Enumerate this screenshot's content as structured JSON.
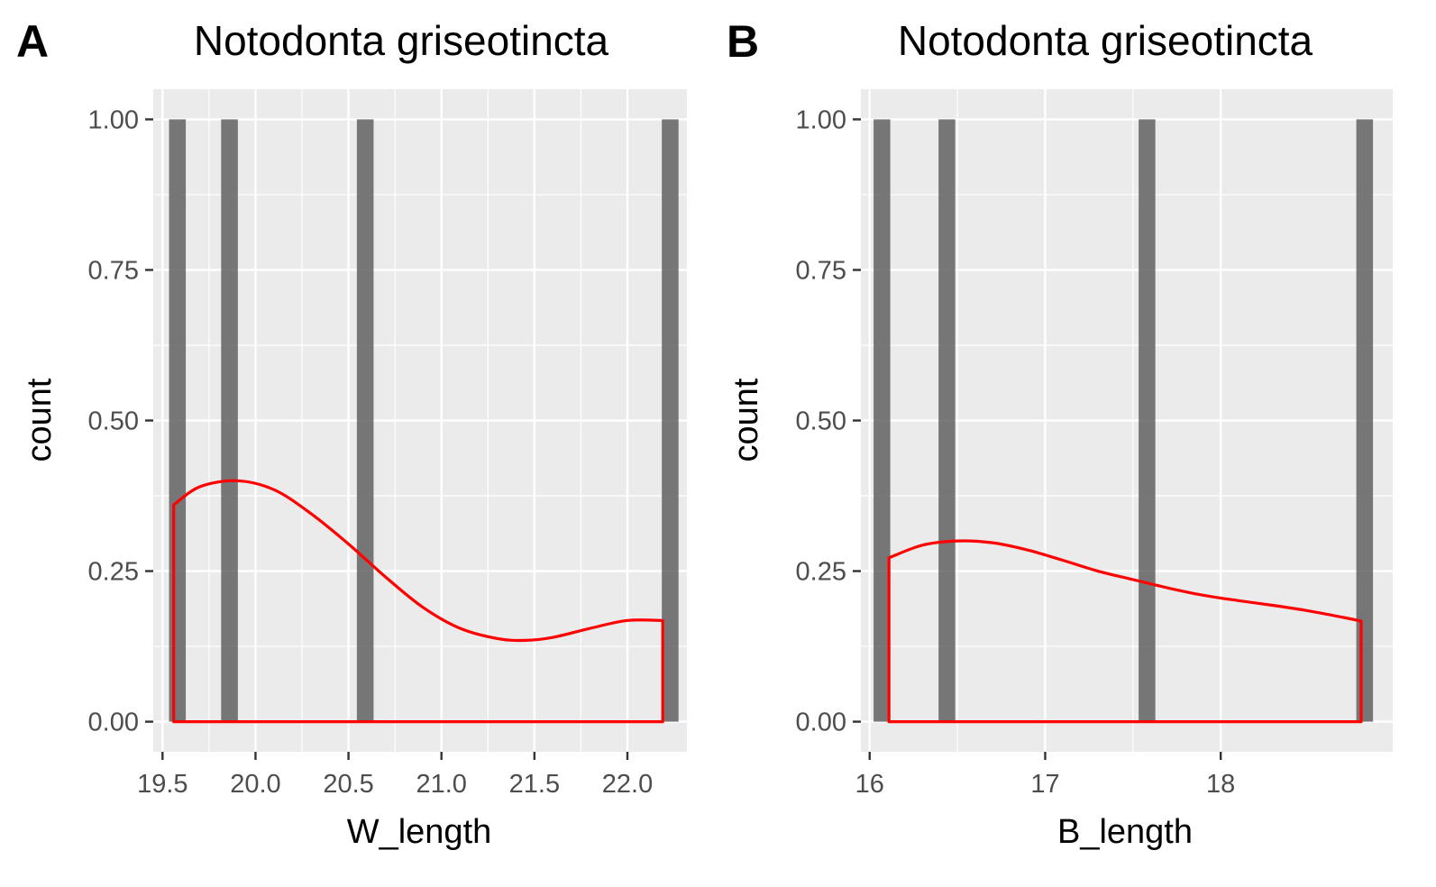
{
  "colors": {
    "panel_background": "#ebebeb",
    "grid": "#ffffff",
    "bar": "#595959",
    "density": "#ff0000",
    "tick": "#333333",
    "tick_label": "#4d4d4d"
  },
  "chart_data": [
    {
      "type": "bar",
      "panel_label": "A",
      "title": "Notodonta griseotincta",
      "xlabel": "W_length",
      "ylabel": "count",
      "xlim": [
        19.45,
        22.32
      ],
      "ylim": [
        -0.05,
        1.05
      ],
      "x_ticks": [
        {
          "value": 19.5,
          "label": "19.5"
        },
        {
          "value": 20.0,
          "label": "20.0"
        },
        {
          "value": 20.5,
          "label": "20.5"
        },
        {
          "value": 21.0,
          "label": "21.0"
        },
        {
          "value": 21.5,
          "label": "21.5"
        },
        {
          "value": 22.0,
          "label": "22.0"
        }
      ],
      "y_ticks": [
        {
          "value": 0.0,
          "label": "0.00"
        },
        {
          "value": 0.25,
          "label": "0.25"
        },
        {
          "value": 0.5,
          "label": "0.50"
        },
        {
          "value": 0.75,
          "label": "0.75"
        },
        {
          "value": 1.0,
          "label": "1.00"
        }
      ],
      "grid": true,
      "bin_width": 0.09,
      "bars": [
        {
          "x": 19.58,
          "count": 1
        },
        {
          "x": 19.86,
          "count": 1
        },
        {
          "x": 20.59,
          "count": 1
        },
        {
          "x": 22.23,
          "count": 1
        }
      ],
      "density": {
        "x": [
          19.56,
          19.7,
          19.9,
          20.1,
          20.3,
          20.5,
          20.7,
          20.9,
          21.1,
          21.3,
          21.45,
          21.6,
          21.8,
          22.0,
          22.19
        ],
        "y": [
          0.36,
          0.39,
          0.4,
          0.385,
          0.345,
          0.295,
          0.24,
          0.19,
          0.155,
          0.138,
          0.135,
          0.14,
          0.155,
          0.168,
          0.168
        ]
      }
    },
    {
      "type": "bar",
      "panel_label": "B",
      "title": "Notodonta griseotincta",
      "xlabel": "B_length",
      "ylabel": "count",
      "xlim": [
        15.95,
        18.98
      ],
      "ylim": [
        -0.05,
        1.05
      ],
      "x_ticks": [
        {
          "value": 16,
          "label": "16"
        },
        {
          "value": 17,
          "label": "17"
        },
        {
          "value": 18,
          "label": "18"
        }
      ],
      "y_ticks": [
        {
          "value": 0.0,
          "label": "0.00"
        },
        {
          "value": 0.25,
          "label": "0.25"
        },
        {
          "value": 0.5,
          "label": "0.50"
        },
        {
          "value": 0.75,
          "label": "0.75"
        },
        {
          "value": 1.0,
          "label": "1.00"
        }
      ],
      "grid": true,
      "bin_width": 0.095,
      "bars": [
        {
          "x": 16.07,
          "count": 1
        },
        {
          "x": 16.44,
          "count": 1
        },
        {
          "x": 17.58,
          "count": 1
        },
        {
          "x": 18.82,
          "count": 1
        }
      ],
      "density": {
        "x": [
          16.11,
          16.3,
          16.5,
          16.7,
          16.9,
          17.1,
          17.3,
          17.5,
          17.7,
          17.9,
          18.1,
          18.3,
          18.5,
          18.7,
          18.8
        ],
        "y": [
          0.272,
          0.293,
          0.3,
          0.297,
          0.285,
          0.268,
          0.25,
          0.236,
          0.222,
          0.21,
          0.201,
          0.193,
          0.184,
          0.173,
          0.167
        ]
      }
    }
  ]
}
